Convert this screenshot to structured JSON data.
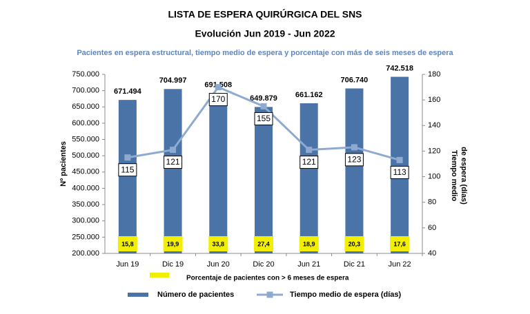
{
  "chart_data": {
    "type": "bar_line",
    "title": "LISTA DE ESPERA QUIRÚRGICA DEL SNS",
    "subtitle": "Evolución Jun 2019 - Jun 2022",
    "description": "Pacientes en espera estructural, tiempo medio de espera  y porcentaje con más de seis meses de espera",
    "ylabel": "Nº pacientes",
    "y2label": [
      "Tiempo medio",
      "de espera (días)"
    ],
    "categories": [
      "Jun 19",
      "Dic 19",
      "Jun 20",
      "Dic 20",
      "Jun 21",
      "Dic 21",
      "Jun 22"
    ],
    "series": [
      {
        "name": "Número de pacientes",
        "type": "bar",
        "color": "#4a74a8",
        "values": [
          671494,
          704997,
          691508,
          649879,
          661162,
          706740,
          742518
        ],
        "value_labels": [
          "671.494",
          "704.997",
          "691.508",
          "649.879",
          "661.162",
          "706.740",
          "742.518"
        ]
      },
      {
        "name": "Tiempo medio de espera (días)",
        "type": "line",
        "axis": "y2",
        "color": "#8eaad0",
        "values": [
          115,
          121,
          170,
          155,
          121,
          123,
          113
        ]
      },
      {
        "name": "Porcentaje de pacientes con > 6 meses  de espera",
        "type": "label",
        "color": "#f2ee00",
        "values": [
          15.8,
          19.9,
          33.8,
          27.4,
          18.9,
          20.3,
          17.6
        ],
        "value_labels": [
          "15,8",
          "19,9",
          "33,8",
          "27,4",
          "18,9",
          "20,3",
          "17,6"
        ]
      }
    ],
    "ylim": [
      200000,
      750000
    ],
    "yticks": [
      {
        "value": 200000,
        "label": "200.000"
      },
      {
        "value": 250000,
        "label": "250.000"
      },
      {
        "value": 300000,
        "label": "300.000"
      },
      {
        "value": 350000,
        "label": "350.000"
      },
      {
        "value": 400000,
        "label": "400.000"
      },
      {
        "value": 450000,
        "label": "450.000"
      },
      {
        "value": 500000,
        "label": "500.000"
      },
      {
        "value": 550000,
        "label": "550.000"
      },
      {
        "value": 600000,
        "label": "600.000"
      },
      {
        "value": 650000,
        "label": "650.000"
      },
      {
        "value": 700000,
        "label": "700.000"
      },
      {
        "value": 750000,
        "label": "750.000"
      }
    ],
    "y2lim": [
      40,
      180
    ],
    "y2ticks": [
      40,
      60,
      80,
      100,
      120,
      140,
      160,
      180
    ]
  }
}
